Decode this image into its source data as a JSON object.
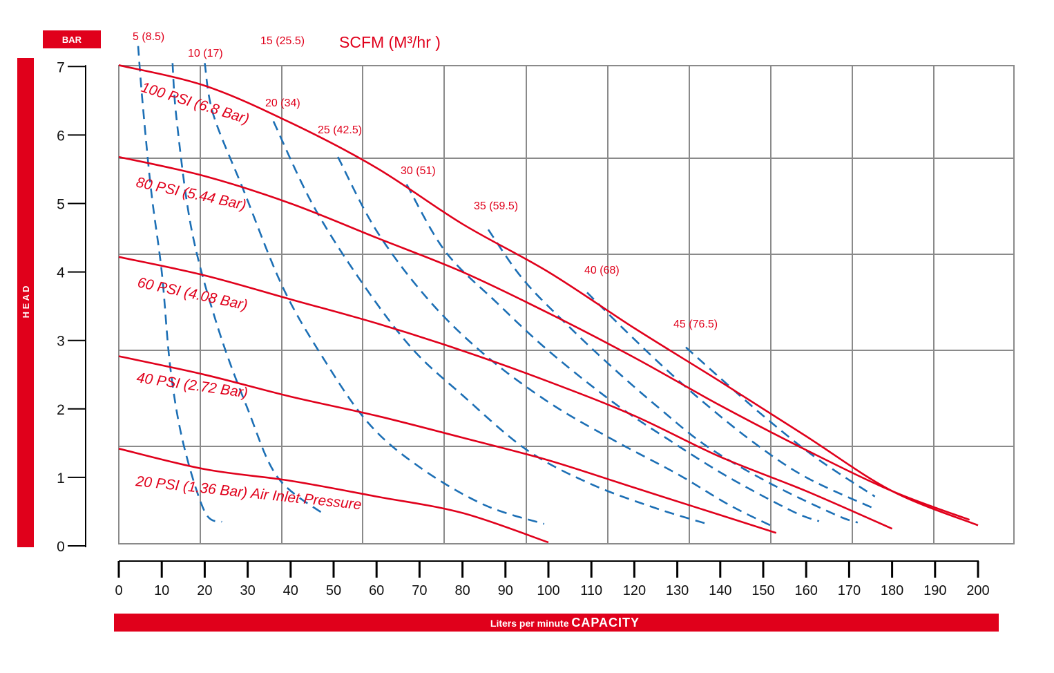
{
  "colors": {
    "accent": "#e0001b",
    "grid": "#8a8a8a",
    "air_curve": "#1c6fb5",
    "axis": "#000000"
  },
  "labels": {
    "bar_unit": "BAR",
    "head": "H E A D",
    "capacity_prefix": "Liters per minute ",
    "capacity_bold": "CAPACITY",
    "scfm_title": "SCFM (M³/hr )"
  },
  "chart_data": {
    "type": "line",
    "x_axis": {
      "unit_label": "Liters per minute CAPACITY",
      "range": [
        0,
        200
      ],
      "ticks": [
        0,
        10,
        20,
        30,
        40,
        50,
        60,
        70,
        80,
        90,
        100,
        110,
        120,
        130,
        140,
        150,
        160,
        170,
        180,
        190,
        200
      ]
    },
    "y_axis": {
      "unit_label": "BAR",
      "side_label": "HEAD",
      "range": [
        0,
        7
      ],
      "ticks": [
        0,
        1,
        2,
        3,
        4,
        5,
        6,
        7
      ]
    },
    "grid": true,
    "pressure_series": [
      {
        "name": "100 PSI (6.8 Bar)",
        "points": [
          [
            0,
            7.02
          ],
          [
            20,
            6.72
          ],
          [
            40,
            6.18
          ],
          [
            60,
            5.52
          ],
          [
            80,
            4.7
          ],
          [
            100,
            4.0
          ],
          [
            120,
            3.18
          ],
          [
            140,
            2.4
          ],
          [
            160,
            1.6
          ],
          [
            180,
            0.8
          ],
          [
            200,
            0.3
          ]
        ]
      },
      {
        "name": "80 PSI (5.44 Bar)",
        "points": [
          [
            0,
            5.68
          ],
          [
            20,
            5.4
          ],
          [
            40,
            5.0
          ],
          [
            60,
            4.5
          ],
          [
            80,
            4.0
          ],
          [
            100,
            3.4
          ],
          [
            120,
            2.75
          ],
          [
            140,
            2.05
          ],
          [
            160,
            1.4
          ],
          [
            180,
            0.8
          ],
          [
            198,
            0.38
          ]
        ]
      },
      {
        "name": "60 PSI (4.08 Bar)",
        "points": [
          [
            0,
            4.22
          ],
          [
            20,
            3.95
          ],
          [
            40,
            3.6
          ],
          [
            60,
            3.25
          ],
          [
            80,
            2.85
          ],
          [
            100,
            2.4
          ],
          [
            120,
            1.9
          ],
          [
            140,
            1.3
          ],
          [
            160,
            0.8
          ],
          [
            180,
            0.25
          ]
        ]
      },
      {
        "name": "40 PSI (2.72 Bar)",
        "points": [
          [
            0,
            2.77
          ],
          [
            20,
            2.5
          ],
          [
            40,
            2.18
          ],
          [
            60,
            1.9
          ],
          [
            80,
            1.58
          ],
          [
            100,
            1.25
          ],
          [
            120,
            0.85
          ],
          [
            140,
            0.45
          ],
          [
            153,
            0.19
          ]
        ]
      },
      {
        "name": "20 PSI (1.36 Bar) Air Inlet Pressure",
        "points": [
          [
            0,
            1.42
          ],
          [
            20,
            1.12
          ],
          [
            40,
            0.95
          ],
          [
            60,
            0.72
          ],
          [
            80,
            0.48
          ],
          [
            100,
            0.05
          ]
        ]
      }
    ],
    "air_consumption_series": [
      {
        "name": "5 (8.5)",
        "points": [
          [
            4.5,
            7.3
          ],
          [
            5.5,
            6.5
          ],
          [
            7.5,
            5.2
          ],
          [
            10,
            4.0
          ],
          [
            12,
            2.6
          ],
          [
            15,
            1.5
          ],
          [
            20,
            0.5
          ],
          [
            24,
            0.35
          ]
        ]
      },
      {
        "name": "10 (17)",
        "points": [
          [
            12.5,
            7.05
          ],
          [
            13.5,
            6.2
          ],
          [
            17,
            4.6
          ],
          [
            23,
            3.2
          ],
          [
            30,
            2.0
          ],
          [
            37,
            1.0
          ],
          [
            48,
            0.45
          ]
        ]
      },
      {
        "name": "15 (25.5)",
        "points": [
          [
            20,
            7.05
          ],
          [
            22,
            6.3
          ],
          [
            29,
            5.2
          ],
          [
            38,
            3.8
          ],
          [
            47,
            2.8
          ],
          [
            58,
            1.8
          ],
          [
            70,
            1.15
          ],
          [
            85,
            0.6
          ],
          [
            99,
            0.32
          ]
        ]
      },
      {
        "name": "20 (34)",
        "points": [
          [
            36,
            6.2
          ],
          [
            45,
            5.0
          ],
          [
            56,
            3.9
          ],
          [
            68,
            2.9
          ],
          [
            80,
            2.2
          ],
          [
            95,
            1.4
          ],
          [
            110,
            0.9
          ],
          [
            125,
            0.55
          ],
          [
            137,
            0.32
          ]
        ]
      },
      {
        "name": "25 (42.5)",
        "points": [
          [
            51,
            5.68
          ],
          [
            60,
            4.6
          ],
          [
            72,
            3.6
          ],
          [
            85,
            2.8
          ],
          [
            100,
            2.1
          ],
          [
            115,
            1.55
          ],
          [
            130,
            1.05
          ],
          [
            142,
            0.6
          ],
          [
            152,
            0.29
          ]
        ]
      },
      {
        "name": "30 (51)",
        "points": [
          [
            67,
            5.28
          ],
          [
            76,
            4.3
          ],
          [
            88,
            3.55
          ],
          [
            100,
            2.85
          ],
          [
            115,
            2.1
          ],
          [
            128,
            1.55
          ],
          [
            142,
            1.0
          ],
          [
            157,
            0.5
          ],
          [
            163,
            0.36
          ]
        ]
      },
      {
        "name": "35 (59.5)",
        "points": [
          [
            86,
            4.62
          ],
          [
            94,
            3.9
          ],
          [
            104,
            3.25
          ],
          [
            115,
            2.6
          ],
          [
            126,
            2.0
          ],
          [
            137,
            1.45
          ],
          [
            152,
            0.9
          ],
          [
            167,
            0.45
          ],
          [
            172,
            0.34
          ]
        ]
      },
      {
        "name": "40 (68)",
        "points": [
          [
            109,
            3.7
          ],
          [
            117,
            3.2
          ],
          [
            127,
            2.6
          ],
          [
            137,
            2.05
          ],
          [
            148,
            1.5
          ],
          [
            160,
            1.0
          ],
          [
            176,
            0.54
          ]
        ]
      },
      {
        "name": "45 (76.5)",
        "points": [
          [
            132,
            2.9
          ],
          [
            140,
            2.45
          ],
          [
            150,
            1.9
          ],
          [
            162,
            1.3
          ],
          [
            176,
            0.72
          ]
        ]
      }
    ]
  }
}
